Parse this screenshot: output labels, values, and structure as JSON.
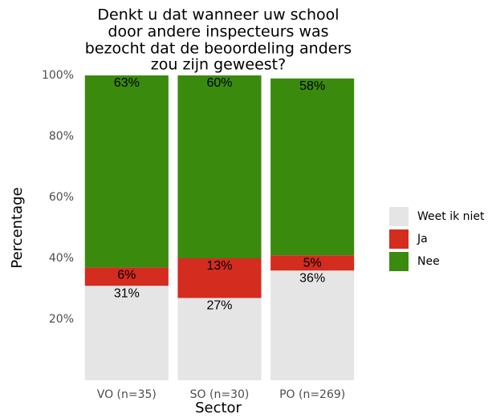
{
  "chart_data": {
    "type": "stacked_bar",
    "title": [
      "Denkt u dat wanneer uw school",
      "door andere inspecteurs was",
      "bezocht dat de beoordeling anders",
      "zou zijn geweest?"
    ],
    "x_label": "Sector",
    "y_label": "Percentage",
    "categories": [
      "VO (n=35)",
      "SO (n=30)",
      "PO (n=269)"
    ],
    "series": [
      {
        "name": "Weet ik niet",
        "color": "#e5e5e5",
        "values": [
          31,
          27,
          36
        ],
        "value_labels": [
          "31%",
          "27%",
          "36%"
        ]
      },
      {
        "name": "Ja",
        "color": "#d42c1f",
        "values": [
          6,
          13,
          5
        ],
        "value_labels": [
          "6%",
          "13%",
          "5%"
        ]
      },
      {
        "name": "Nee",
        "color": "#3a8a0e",
        "values": [
          63,
          60,
          58
        ],
        "value_labels": [
          "63%",
          "60%",
          "58%"
        ]
      }
    ],
    "ylim": [
      0,
      100
    ],
    "yticks": [
      {
        "value": 20,
        "label": "20%"
      },
      {
        "value": 40,
        "label": "40%"
      },
      {
        "value": 60,
        "label": "60%"
      },
      {
        "value": 80,
        "label": "80%"
      },
      {
        "value": 100,
        "label": "100%"
      }
    ],
    "grid": false,
    "legend": "right"
  }
}
